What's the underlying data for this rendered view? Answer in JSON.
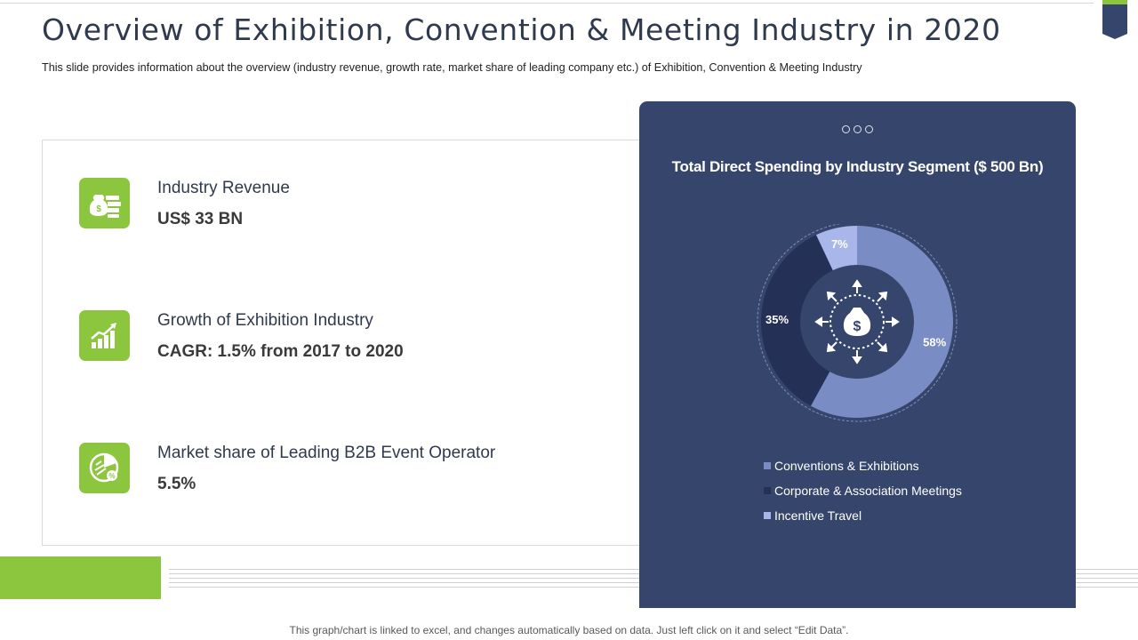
{
  "header": {
    "title": "Overview of Exhibition, Convention & Meeting Industry in 2020",
    "subtitle": "This slide provides information about the overview (industry revenue, growth rate, market share of leading company etc.) of Exhibition, Convention & Meeting Industry"
  },
  "metrics": [
    {
      "label": "Industry Revenue",
      "value": "US$ 33 BN",
      "icon": "money-bag-cash-icon"
    },
    {
      "label": "Growth of Exhibition Industry",
      "value": "CAGR: 1.5% from 2017 to 2020",
      "icon": "growth-bar-chart-icon"
    },
    {
      "label": "Market share of Leading B2B Event Operator",
      "value": "5.5%",
      "icon": "pie-chart-percent-icon"
    }
  ],
  "chart_data": {
    "type": "pie",
    "variant": "donut",
    "title": "Total Direct Spending by Industry Segment ($ 500 Bn)",
    "categories": [
      "Conventions & Exhibitions",
      "Corporate & Association Meetings",
      "Incentive Travel"
    ],
    "values": [
      58,
      35,
      7
    ],
    "data_labels": [
      "58%",
      "35%",
      "7%"
    ],
    "colors": [
      "#7a8cc4",
      "#243055",
      "#a9b6ea"
    ],
    "legend_position": "bottom",
    "center_icon": "money-bag-arrows-icon"
  },
  "colors": {
    "accent_green": "#8cc63f",
    "navy": "#36456b",
    "title_text": "#2f3a4f"
  },
  "footer": {
    "note": "This graph/chart is linked to excel, and changes automatically based on data. Just left click on it and select “Edit Data”."
  }
}
